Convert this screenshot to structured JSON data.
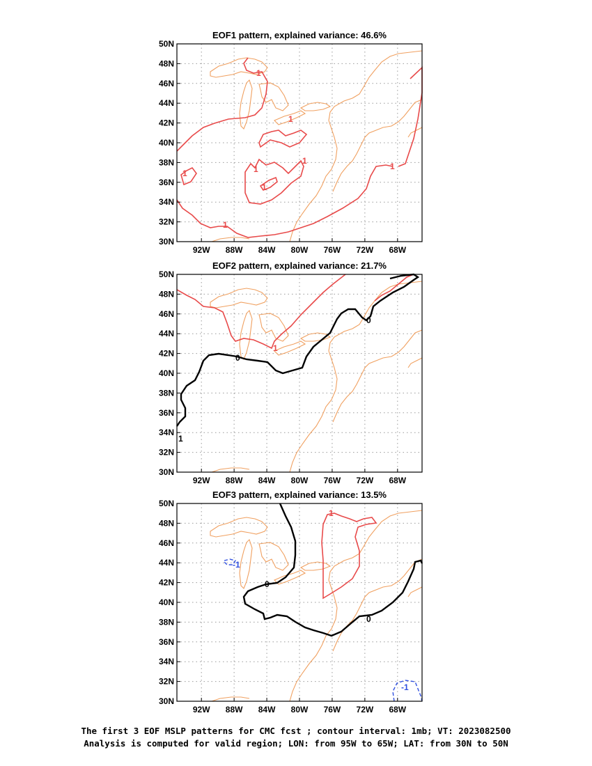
{
  "panels": [
    {
      "title": "EOF1 pattern, explained variance: 46.6%",
      "contour_labels": [
        "1",
        "1",
        "1",
        "1",
        "1",
        "1",
        "1",
        "1"
      ]
    },
    {
      "title": "EOF2 pattern, explained variance: 21.7%",
      "contour_labels": [
        "1",
        "0",
        "0",
        "1"
      ]
    },
    {
      "title": "EOF3 pattern, explained variance: 13.5%",
      "contour_labels": [
        "1",
        "0",
        "0",
        "-1",
        "-1"
      ]
    }
  ],
  "map": {
    "lon_range": [
      -95,
      -65
    ],
    "lat_range": [
      30,
      50
    ],
    "x_ticks": [
      "92W",
      "88W",
      "84W",
      "80W",
      "76W",
      "72W",
      "68W"
    ],
    "y_ticks": [
      "50N",
      "48N",
      "46N",
      "44N",
      "42N",
      "40N",
      "38N",
      "36N",
      "34N",
      "32N",
      "30N"
    ],
    "grid": "dotted"
  },
  "colors": {
    "positive_contour": "#e84a4a",
    "zero_contour": "#000000",
    "negative_contour": "#3050e0",
    "coastline": "#f0a060",
    "grid": "#999999"
  },
  "caption": {
    "line1": "The first 3 EOF MSLP patterns for CMC fcst ; contour interval: 1mb; VT: 2023082500",
    "line2": "Analysis is computed for valid region; LON: from 95W to 65W; LAT: from 30N to 50N"
  }
}
